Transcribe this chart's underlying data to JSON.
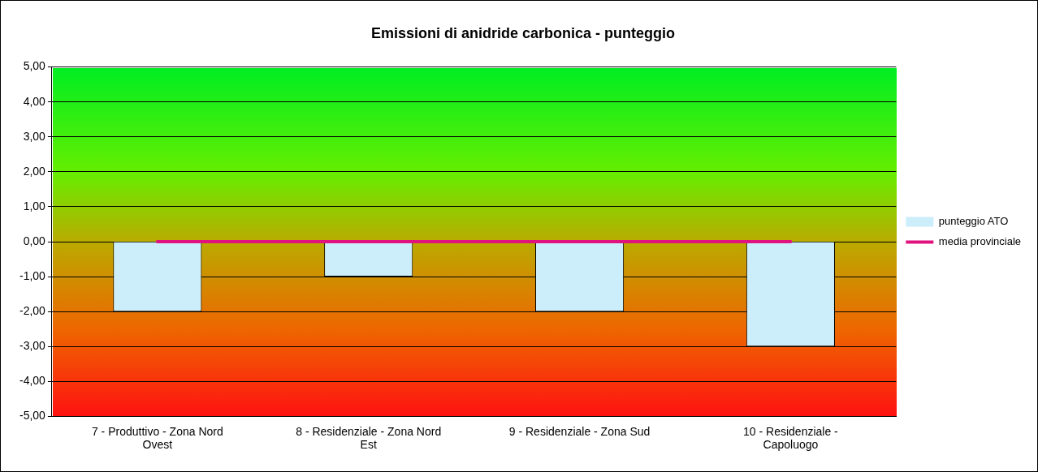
{
  "chart_data": {
    "type": "bar",
    "title": "Emissioni di anidride carbonica - punteggio",
    "categories": [
      "7 - Produttivo - Zona Nord Ovest",
      "8 - Residenziale - Zona Nord Est",
      "9 - Residenziale - Zona Sud",
      "10 - Residenziale - Capoluogo"
    ],
    "series": [
      {
        "name": "punteggio ATO",
        "color": "#cceefa",
        "values": [
          -2,
          -1,
          -2,
          -3
        ]
      },
      {
        "name": "media provinciale",
        "type": "line",
        "color": "#e0137e",
        "values": [
          0,
          0,
          0,
          0
        ]
      }
    ],
    "ylim": [
      -5,
      5
    ],
    "yticks": [
      {
        "value": -5,
        "label": "-5,00"
      },
      {
        "value": -4,
        "label": "-4,00"
      },
      {
        "value": -3,
        "label": "-3,00"
      },
      {
        "value": -2,
        "label": "-2,00"
      },
      {
        "value": -1,
        "label": "-1,00"
      },
      {
        "value": 0,
        "label": "0,00"
      },
      {
        "value": 1,
        "label": "1,00"
      },
      {
        "value": 2,
        "label": "2,00"
      },
      {
        "value": 3,
        "label": "3,00"
      },
      {
        "value": 4,
        "label": "4,00"
      },
      {
        "value": 5,
        "label": "5,00"
      }
    ],
    "grid": "y",
    "legend": "right",
    "marker": "none"
  }
}
